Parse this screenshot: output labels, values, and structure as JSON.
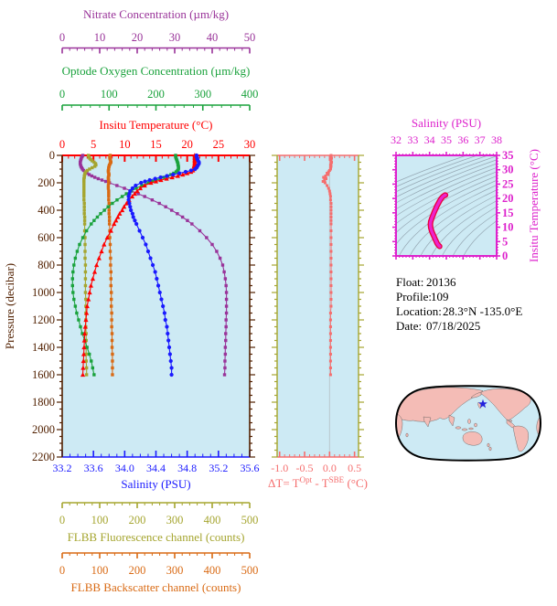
{
  "colors": {
    "background": "#ffffff",
    "panel_bg": "#cdeaf4",
    "nitrate": "#993399",
    "oxygen": "#1aa23c",
    "temperature": "#ff0000",
    "pressure": "#512000",
    "salinity": "#1a1aff",
    "delta_t": "#f56e6e",
    "fluorescence": "#a5a52f",
    "backscatter": "#d96a14",
    "ts_magenta": "#dd22cc",
    "ts_curve": "#ee22cc",
    "ts_curve_edge": "#e8003c",
    "isopycnal": "#96a8b4",
    "zero_gridline": "#b9c8ce",
    "map_land": "#f4bcb6",
    "map_outline": "#000000",
    "star": "#2222dd"
  },
  "axes": {
    "nitrate": {
      "title": "Nitrate Concentration (µm/kg)",
      "min": 0,
      "max": 50,
      "tick_labels": [
        "0",
        "10",
        "20",
        "30",
        "40",
        "50"
      ],
      "minor_step": 2
    },
    "oxygen": {
      "title": "Optode Oxygen Concentration (µm/kg)",
      "min": 0,
      "max": 400,
      "tick_labels": [
        "0",
        "100",
        "200",
        "300",
        "400"
      ],
      "minor_step": 20
    },
    "temperature": {
      "title": "Insitu Temperature (°C)",
      "min": 0,
      "max": 30,
      "tick_labels": [
        "0",
        "5",
        "10",
        "15",
        "20",
        "25",
        "30"
      ],
      "minor_step": 1
    },
    "pressure": {
      "title": "Pressure (decibar)",
      "min": 0,
      "max": 2200,
      "tick_labels": [
        "0",
        "200",
        "400",
        "600",
        "800",
        "1000",
        "1200",
        "1400",
        "1600",
        "1800",
        "2000",
        "2200"
      ],
      "major_step": 200,
      "minor_step": 50
    },
    "salinity": {
      "title": "Salinity (PSU)",
      "min": 33.2,
      "max": 35.6,
      "tick_labels": [
        "33.2",
        "33.6",
        "34.0",
        "34.4",
        "34.8",
        "35.2",
        "35.6"
      ],
      "minor_step": 0.1
    },
    "fluorescence": {
      "title": "FLBB Fluorescence channel (counts)",
      "min": 0,
      "max": 500,
      "tick_labels": [
        "0",
        "100",
        "200",
        "300",
        "400",
        "500"
      ],
      "minor_step": 20
    },
    "backscatter": {
      "title": "FLBB Backscatter channel (counts)",
      "min": 0,
      "max": 500,
      "tick_labels": [
        "0",
        "100",
        "200",
        "300",
        "400",
        "500"
      ],
      "minor_step": 20
    },
    "delta_t": {
      "title_base1": "ΔT= T",
      "title_sup1": "Opt",
      "title_base2": " - T",
      "title_sup2": "SBE",
      "title_base3": " (°C)",
      "min": -1.05,
      "max": 0.58,
      "tick_values": [
        -1.0,
        -0.5,
        0.0,
        0.5
      ],
      "tick_labels": [
        "-1.0",
        "-0.5",
        "0.0",
        "0.5"
      ],
      "minor_step": 0.1
    },
    "ts": {
      "title": "Salinity (PSU)",
      "right_title": "Insitu Temperature (°C)",
      "s_min": 32,
      "s_max": 38,
      "s_tick_labels": [
        "32",
        "33",
        "34",
        "35",
        "36",
        "37",
        "38"
      ],
      "s_minor_step": 0.2,
      "t_min": 0,
      "t_max": 35,
      "t_tick_labels": [
        "0",
        "5",
        "10",
        "15",
        "20",
        "25",
        "30",
        "35"
      ],
      "t_minor_step": 1
    }
  },
  "float_info": {
    "float_label": "Float:",
    "float_value": "20136",
    "profile_label": "Profile:",
    "profile_value": "109",
    "location_label": "Location:",
    "location_value": "28.3°N  -135.0°E",
    "date_label": "Date:",
    "date_value": "07/18/2025"
  },
  "chart_data": {
    "type": "line",
    "profile_panel": {
      "ylabel": "Pressure (decibar)",
      "ylim": [
        0,
        2200
      ],
      "y_inverted": true,
      "pressure_dbar": [
        0,
        10,
        20,
        30,
        40,
        50,
        60,
        70,
        80,
        90,
        100,
        110,
        120,
        130,
        140,
        150,
        160,
        170,
        180,
        190,
        200,
        220,
        240,
        260,
        280,
        300,
        325,
        350,
        375,
        400,
        425,
        450,
        475,
        500,
        550,
        600,
        650,
        700,
        750,
        800,
        850,
        900,
        950,
        1000,
        1050,
        1100,
        1150,
        1200,
        1250,
        1300,
        1350,
        1400,
        1450,
        1500,
        1550,
        1600
      ],
      "series": [
        {
          "name": "insitu-temperature",
          "axis": "temperature",
          "marker": "triangle",
          "values": [
            21.2,
            21.2,
            21.2,
            21.2,
            21.2,
            21.2,
            21.2,
            21.15,
            21.1,
            21.1,
            21.1,
            20.9,
            20.6,
            20.0,
            19.3,
            18.5,
            17.6,
            16.7,
            15.8,
            15.0,
            14.2,
            13.2,
            12.5,
            12.0,
            11.6,
            11.2,
            10.7,
            10.3,
            9.9,
            9.6,
            9.2,
            8.9,
            8.6,
            8.3,
            7.8,
            7.2,
            6.7,
            6.3,
            5.9,
            5.5,
            5.2,
            4.9,
            4.6,
            4.4,
            4.2,
            4.0,
            3.9,
            3.8,
            3.7,
            3.6,
            3.55,
            3.5,
            3.45,
            3.4,
            3.35,
            3.3
          ]
        },
        {
          "name": "salinity",
          "axis": "salinity",
          "marker": "circle",
          "values": [
            34.92,
            34.92,
            34.93,
            34.93,
            34.94,
            34.95,
            34.95,
            34.94,
            34.93,
            34.92,
            34.9,
            34.85,
            34.78,
            34.7,
            34.62,
            34.54,
            34.46,
            34.39,
            34.32,
            34.26,
            34.21,
            34.14,
            34.1,
            34.07,
            34.06,
            34.05,
            34.05,
            34.06,
            34.07,
            34.08,
            34.1,
            34.11,
            34.13,
            34.15,
            34.19,
            34.23,
            34.27,
            34.3,
            34.33,
            34.36,
            34.39,
            34.41,
            34.43,
            34.45,
            34.47,
            34.49,
            34.51,
            34.52,
            34.54,
            34.55,
            34.56,
            34.57,
            34.58,
            34.59,
            34.6,
            34.6
          ]
        },
        {
          "name": "optode-oxygen",
          "axis": "oxygen",
          "marker": "square",
          "values": [
            242,
            242,
            243,
            244,
            245,
            246,
            247,
            247,
            248,
            248,
            248,
            246,
            243,
            238,
            232,
            225,
            217,
            209,
            200,
            192,
            184,
            170,
            158,
            147,
            137,
            128,
            117,
            107,
            98,
            90,
            82,
            75,
            68,
            62,
            52,
            44,
            37,
            32,
            28,
            25,
            23,
            22,
            22,
            23,
            25,
            28,
            31,
            35,
            39,
            43,
            48,
            53,
            58,
            62,
            65,
            68
          ]
        },
        {
          "name": "nitrate",
          "axis": "nitrate",
          "marker": "square",
          "values": [
            5.5,
            5.3,
            5.1,
            5.0,
            4.9,
            4.8,
            4.8,
            4.9,
            5.0,
            5.2,
            5.4,
            5.7,
            6.1,
            6.6,
            7.2,
            7.9,
            8.7,
            9.6,
            10.6,
            11.6,
            12.6,
            14.6,
            16.6,
            18.5,
            20.3,
            22.0,
            24.0,
            25.9,
            27.6,
            29.2,
            30.7,
            32.1,
            33.4,
            34.6,
            36.7,
            38.5,
            40.0,
            41.2,
            42.1,
            42.8,
            43.2,
            43.5,
            43.7,
            43.8,
            43.8,
            43.8,
            43.8,
            43.7,
            43.7,
            43.6,
            43.6,
            43.5,
            43.5,
            43.4,
            43.4,
            43.3
          ]
        },
        {
          "name": "flbb-fluorescence",
          "axis": "fluorescence",
          "marker": "square",
          "values": [
            70,
            71,
            73,
            76,
            80,
            85,
            89,
            90,
            87,
            80,
            73,
            67,
            63,
            61,
            60,
            59,
            59,
            58,
            58,
            58,
            58,
            58,
            58,
            58,
            58,
            58,
            58,
            59,
            59,
            59,
            59,
            60,
            60,
            60,
            60,
            61,
            61,
            61,
            61,
            62,
            62,
            62,
            62,
            62,
            63,
            63,
            63,
            63,
            63,
            64,
            64,
            64,
            64,
            64,
            65,
            65
          ]
        },
        {
          "name": "flbb-backscatter",
          "axis": "backscatter",
          "marker": "square",
          "values": [
            128,
            127,
            127,
            128,
            129,
            130,
            128,
            126,
            125,
            124,
            124,
            123,
            123,
            124,
            125,
            124,
            123,
            123,
            124,
            124,
            124,
            123,
            123,
            124,
            124,
            124,
            124,
            125,
            125,
            125,
            125,
            126,
            126,
            126,
            127,
            127,
            128,
            128,
            129,
            129,
            130,
            130,
            130,
            131,
            131,
            131,
            132,
            132,
            132,
            133,
            133,
            133,
            134,
            134,
            134,
            134
          ]
        }
      ]
    },
    "delta_t_panel": {
      "xlim": [
        -1.05,
        0.58
      ],
      "values": [
        0.03,
        0.03,
        0.04,
        0.03,
        0.03,
        0.04,
        0.03,
        0.02,
        0.03,
        0.02,
        0.02,
        0.0,
        -0.02,
        -0.05,
        -0.03,
        -0.08,
        -0.12,
        -0.07,
        -0.1,
        -0.13,
        -0.09,
        -0.05,
        -0.02,
        0.0,
        0.01,
        0.02,
        0.02,
        0.03,
        0.03,
        0.03,
        0.03,
        0.03,
        0.03,
        0.03,
        0.03,
        0.03,
        0.03,
        0.03,
        0.03,
        0.03,
        0.03,
        0.03,
        0.03,
        0.03,
        0.03,
        0.03,
        0.02,
        0.02,
        0.02,
        0.02,
        0.02,
        0.02,
        0.02,
        0.02,
        0.02,
        0.02
      ]
    },
    "ts_panel": {
      "xlabel": "Salinity (PSU)",
      "ylabel": "Insitu Temperature (°C)",
      "xlim": [
        32,
        38
      ],
      "ylim": [
        0,
        35
      ],
      "curve": "temperature vs salinity pairs taken from profile_panel series",
      "isopycnals": {
        "sigma_min": 21,
        "sigma_max": 29,
        "step": 0.5
      }
    },
    "map": {
      "star_lat": 28.3,
      "star_lon": -135.0
    }
  }
}
